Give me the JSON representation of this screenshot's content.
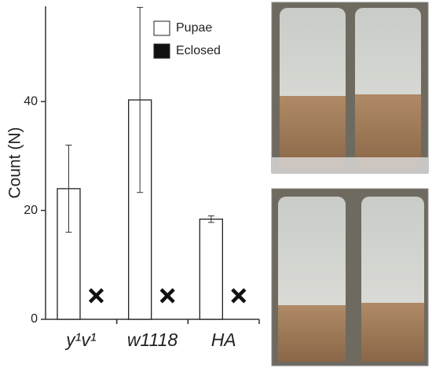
{
  "chart_data": {
    "type": "bar",
    "y_label": "Count (N)",
    "categories": [
      "y¹v¹",
      "w1118",
      "HA"
    ],
    "series": [
      {
        "name": "Pupae",
        "color": "#ffffff",
        "values": [
          24,
          40.3,
          18.4
        ],
        "errors": [
          8,
          17,
          0.6
        ]
      },
      {
        "name": "Eclosed",
        "color": "#111111",
        "values": [
          0,
          0,
          0
        ]
      }
    ],
    "ylim": [
      0,
      57.5
    ],
    "yticks": [
      0,
      20,
      40
    ],
    "legend": "top-right"
  }
}
